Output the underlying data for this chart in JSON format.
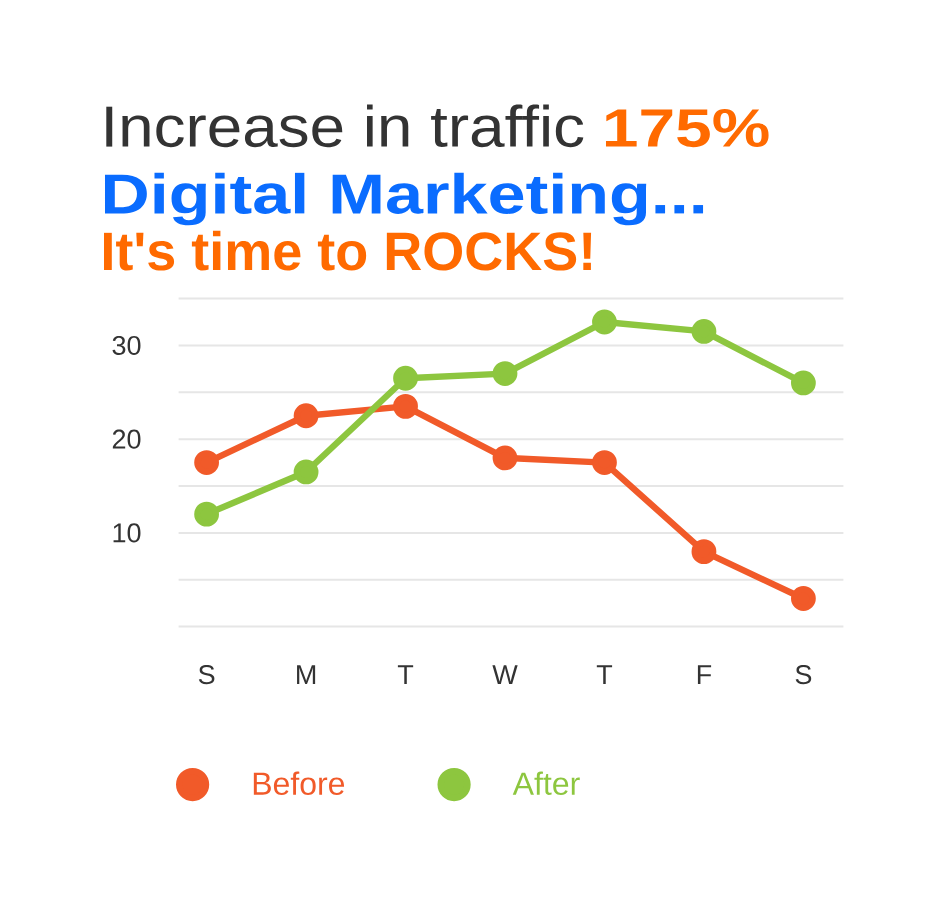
{
  "chart_data": {
    "type": "line",
    "title": "Increase in traffic",
    "subtitle": "Digital Marketing...",
    "annotations": [
      "175%",
      "It's time to ROCKS!"
    ],
    "categories": [
      "S",
      "M",
      "T",
      "W",
      "T",
      "F",
      "S"
    ],
    "series": [
      {
        "name": "Before",
        "color": "#f15a29",
        "values": [
          17.5,
          22.5,
          23.5,
          18,
          17.5,
          8,
          3
        ]
      },
      {
        "name": "After",
        "color": "#8dc63f",
        "values": [
          12,
          16.5,
          26.5,
          27,
          32.5,
          31.5,
          26
        ]
      }
    ],
    "ylim": [
      0,
      35
    ],
    "yticks": [
      {
        "value": 0,
        "label": null
      },
      {
        "value": 5,
        "label": null
      },
      10,
      {
        "value": 15,
        "label": null
      },
      20,
      {
        "value": 25,
        "label": null
      },
      30,
      {
        "value": 35,
        "label": null
      }
    ],
    "grid": "y",
    "legend": "bottom",
    "marker": "circle",
    "line_style": "solid"
  }
}
